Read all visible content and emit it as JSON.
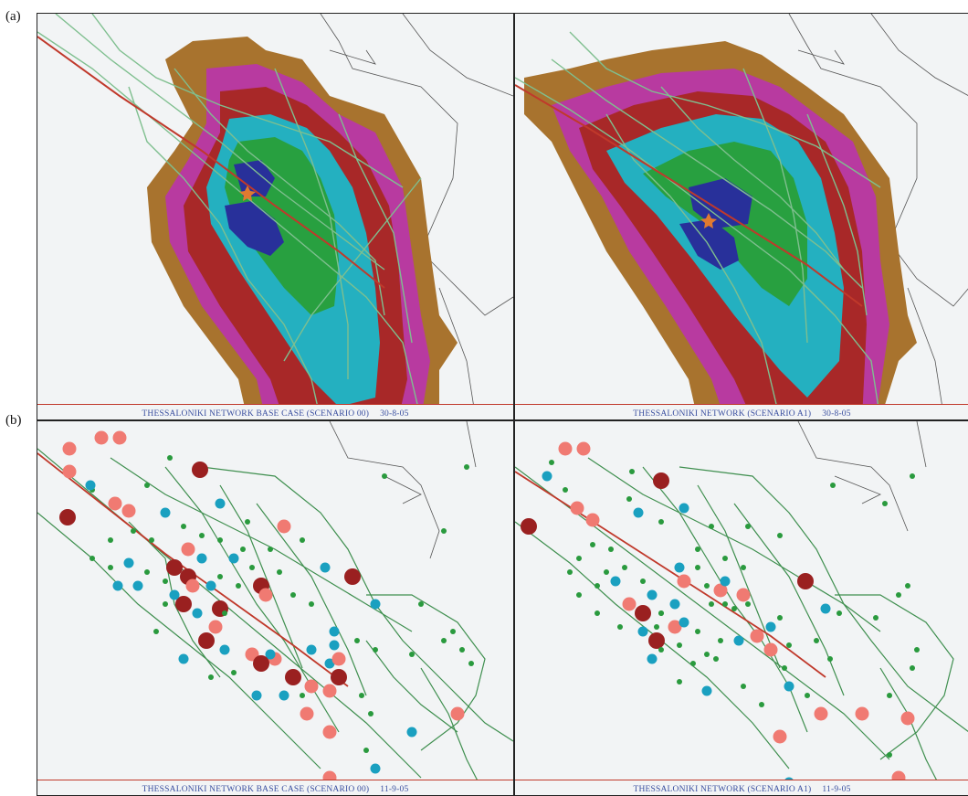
{
  "labels": {
    "row_a": "(a)",
    "row_b": "(b)"
  },
  "panels": {
    "a_left": {
      "caption": "THESSALONIKI NETWORK BASE CASE (SCENARIO 00)",
      "date": "30-8-05"
    },
    "a_right": {
      "caption": "THESSALONIKI NETWORK (SCENARIO A1)",
      "date": "30-8-05"
    },
    "b_left": {
      "caption": "THESSALONIKI NETWORK BASE CASE (SCENARIO 00)",
      "date": "11-9-05"
    },
    "b_right": {
      "caption": "THESSALONIKI NETWORK (SCENARIO A1)",
      "date": "11-9-05"
    }
  },
  "colors": {
    "background": "#f2f4f5",
    "network_link": "#3f8f4f",
    "network_link_light": "#7fbf8f",
    "outer_road": "#555555",
    "main_corridor": "#c0392b",
    "contour_bands": [
      "#a8732e",
      "#b83aa0",
      "#a82828",
      "#24b0c0",
      "#28a040",
      "#28309a"
    ],
    "node_small": "#2a9a3e",
    "node_medium": "#1aa0c0",
    "node_large": "#f07a72",
    "node_xlarge": "#9a2020"
  },
  "legend_semantics": {
    "contour_bands": "accessibility/travel-time isochrone bands, outermost to innermost",
    "nodes": "node size and colour encode delay class"
  }
}
